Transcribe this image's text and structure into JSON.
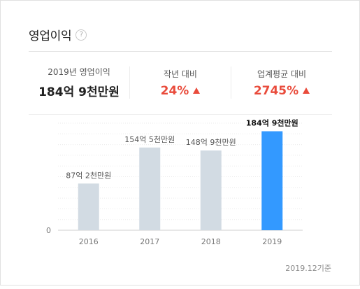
{
  "header": {
    "title": "영업이익",
    "help_symbol": "?"
  },
  "stats": [
    {
      "label": "2019년 영업이익",
      "value": "184억 9천만원",
      "trend": ""
    },
    {
      "label": "작년 대비",
      "value": "24%",
      "trend": "up"
    },
    {
      "label": "업계평균 대비",
      "value": "2745%",
      "trend": "up"
    }
  ],
  "colors": {
    "bar_default": "#d2dbe3",
    "bar_highlight": "#3399ff",
    "increase": "#e94b3b"
  },
  "chart_data": {
    "type": "bar",
    "categories": [
      "2016",
      "2017",
      "2018",
      "2019"
    ],
    "values": [
      87.2,
      154.5,
      148.9,
      184.9
    ],
    "value_labels": [
      "87억 2천만원",
      "154억 5천만원",
      "148억 9천만원",
      "184억 9천만원"
    ],
    "highlight_index": 3,
    "ylim": [
      0,
      200
    ],
    "y_ticks": [
      "0"
    ],
    "grid": true,
    "xlabel": "",
    "ylabel": ""
  },
  "footnote": "2019.12기준"
}
